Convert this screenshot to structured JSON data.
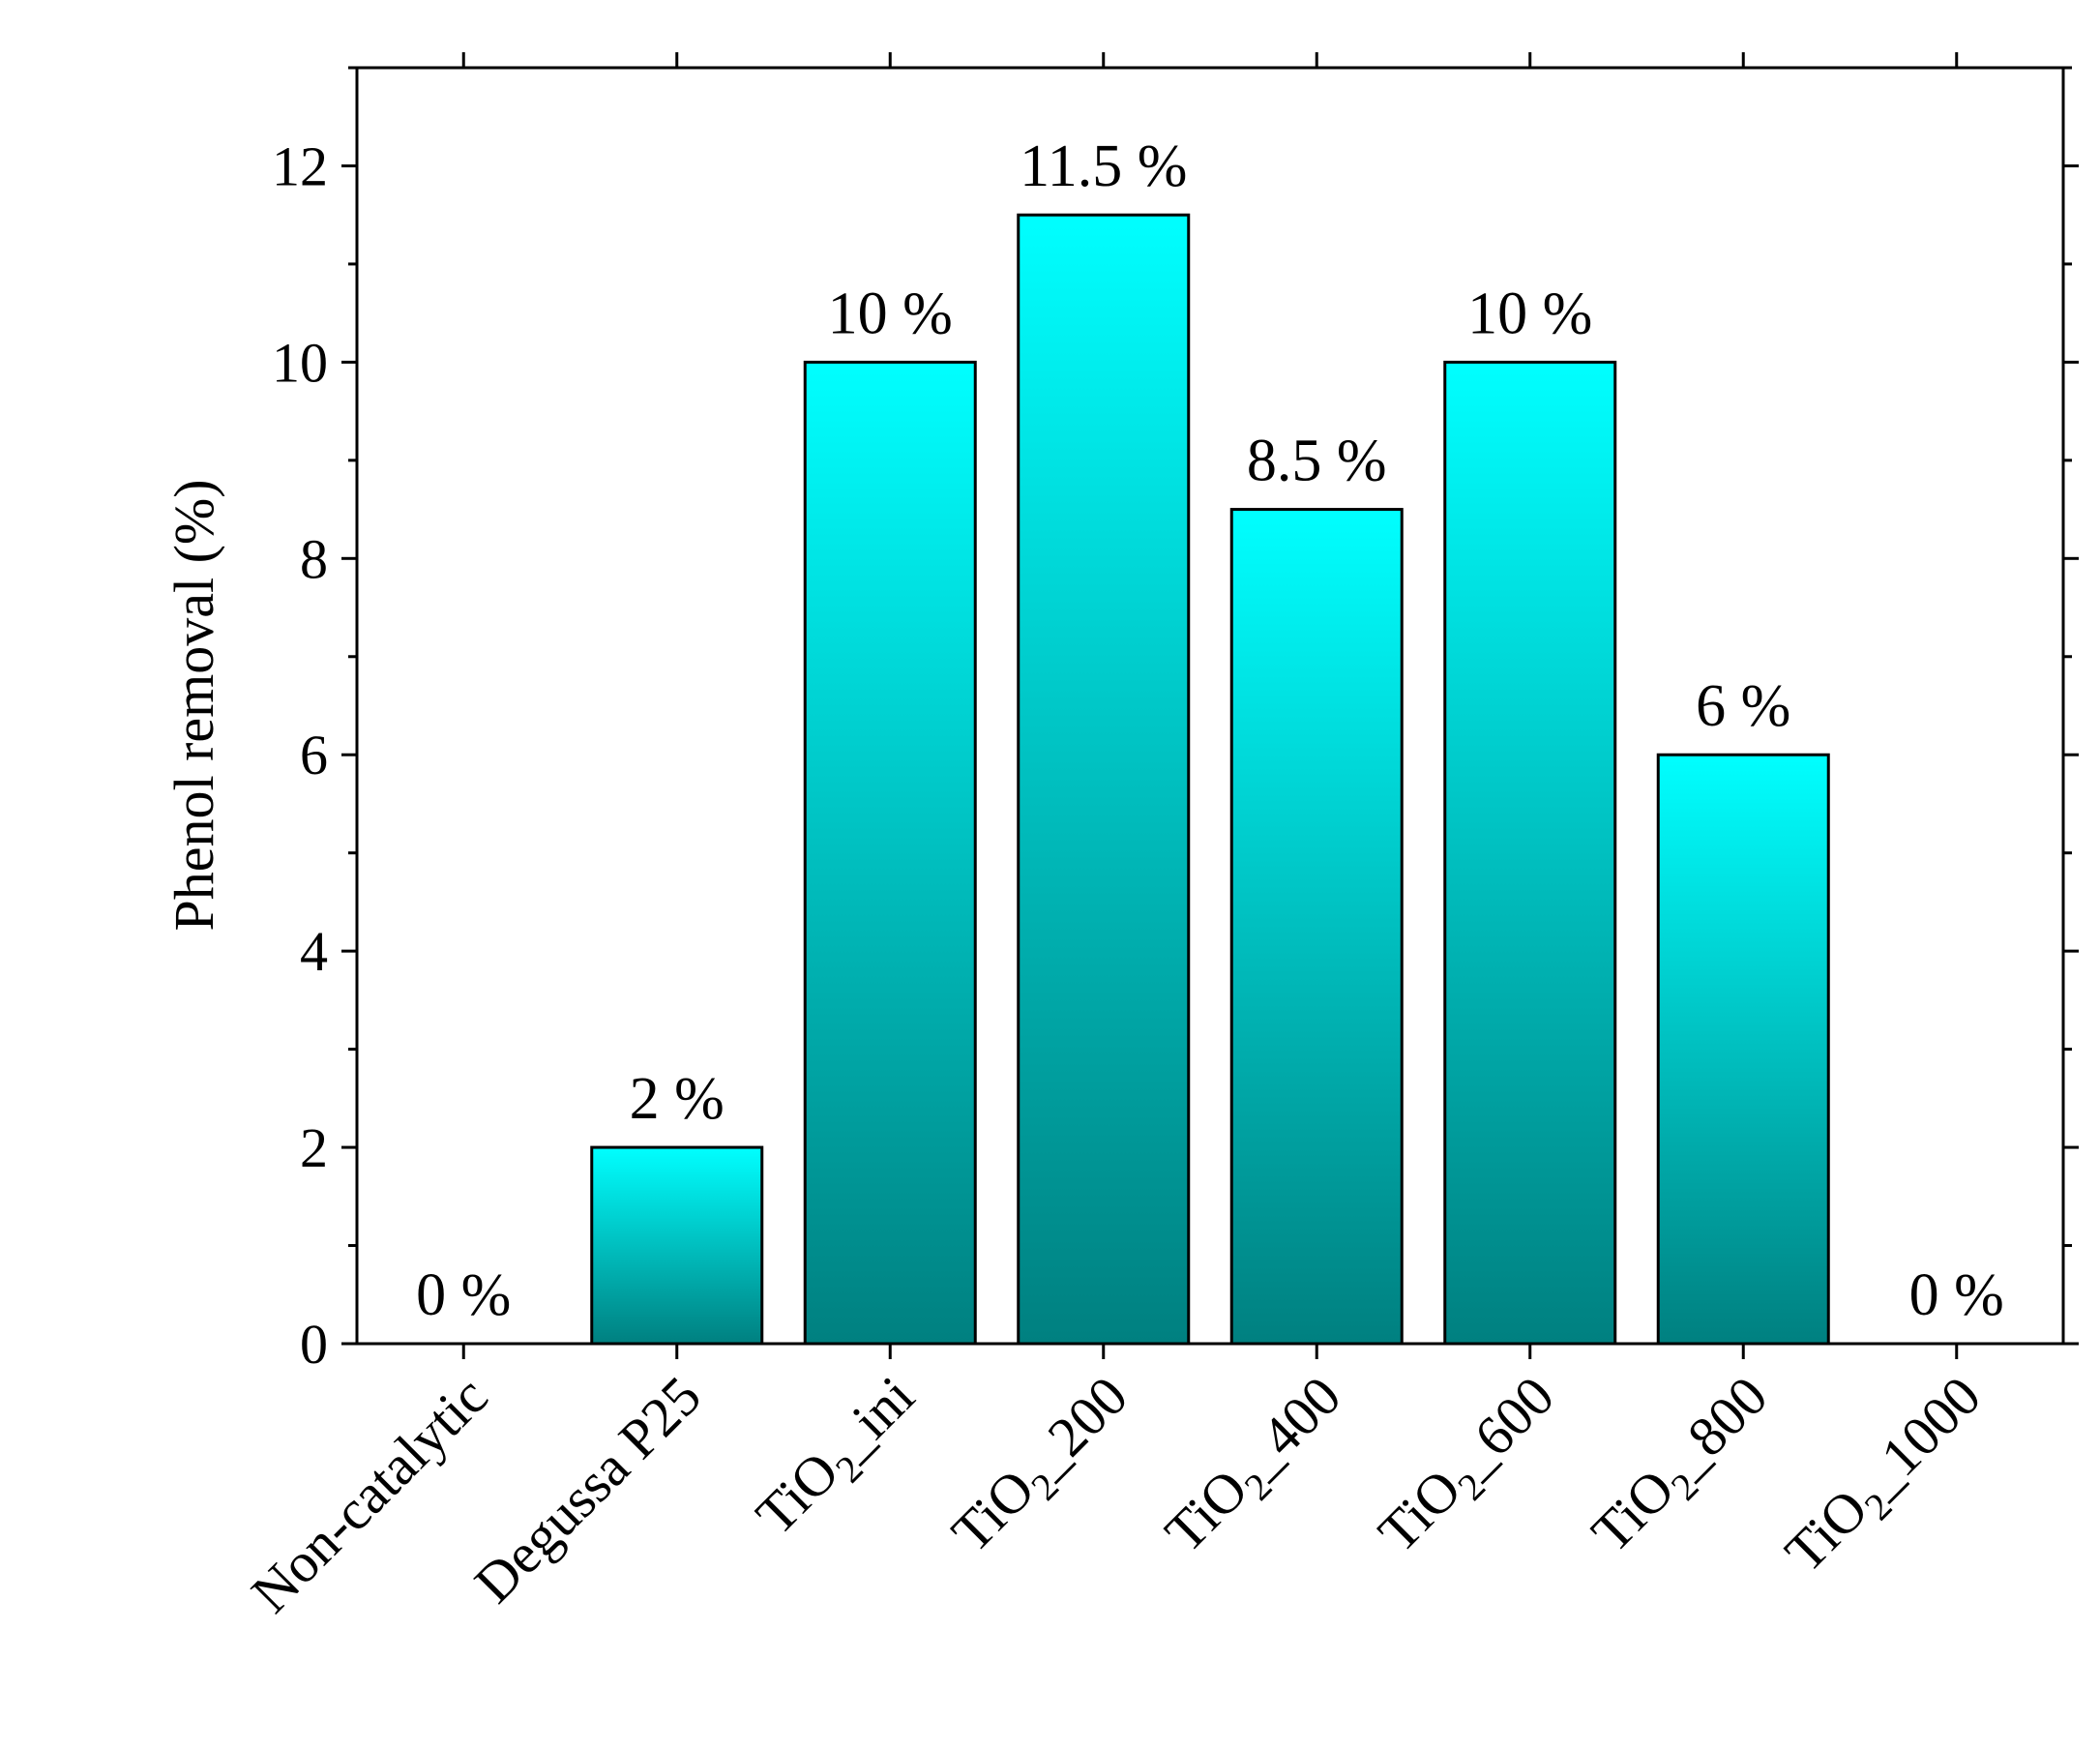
{
  "chart_data": {
    "type": "bar",
    "title": "",
    "xlabel": "",
    "ylabel": "Phenol removal (%)",
    "ylim": [
      0,
      13
    ],
    "yticks": [
      0,
      2,
      4,
      6,
      8,
      10,
      12
    ],
    "yminor_step": 1,
    "grid": false,
    "categories": [
      {
        "main": "Non-catalytic",
        "sub": "",
        "suffix": ""
      },
      {
        "main": "Degussa P25",
        "sub": "",
        "suffix": ""
      },
      {
        "main": "TiO",
        "sub": "2",
        "suffix": "_ini"
      },
      {
        "main": "TiO",
        "sub": "2",
        "suffix": "_200"
      },
      {
        "main": "TiO",
        "sub": "2",
        "suffix": "_400"
      },
      {
        "main": "TiO",
        "sub": "2",
        "suffix": "_600"
      },
      {
        "main": "TiO",
        "sub": "2",
        "suffix": "_800"
      },
      {
        "main": "TiO",
        "sub": "2",
        "suffix": "_1000"
      }
    ],
    "values": [
      0,
      2,
      10,
      11.5,
      8.5,
      10,
      6,
      0
    ],
    "data_labels": [
      "0 %",
      "2 %",
      "10 %",
      "11.5 %",
      "8.5 %",
      "10 %",
      "6 %",
      "0 %"
    ],
    "colors": {
      "bar_top": "#00ffff",
      "bar_bottom": "#008080",
      "bar_edge": "#000000"
    }
  }
}
